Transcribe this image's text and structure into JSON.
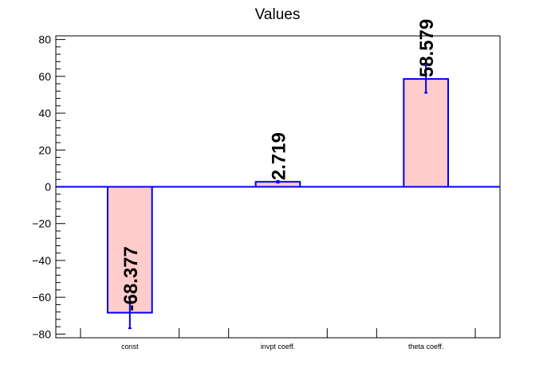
{
  "chart_data": {
    "type": "bar",
    "title": "Values",
    "categories": [
      "const",
      "invpt coeff.",
      "theta coeff."
    ],
    "values": [
      -68.377,
      2.719,
      58.579
    ],
    "errors": [
      8.5,
      0.5,
      7.5
    ],
    "data_labels": [
      "-68.377",
      "2.719",
      "58.579"
    ],
    "ylim": [
      -82,
      82
    ],
    "yticks": [
      -80,
      -60,
      -40,
      -20,
      0,
      20,
      40,
      60,
      80
    ],
    "ytick_labels": [
      "−80",
      "−60",
      "−40",
      "−20",
      "0",
      "20",
      "40",
      "60",
      "80"
    ],
    "xlabel": "",
    "ylabel": "",
    "grid": false,
    "colors": {
      "bar_fill": "#ffcccc",
      "bar_stroke": "#0000ee",
      "zero_line": "#0000ee",
      "error_bar": "#0000ee"
    }
  }
}
